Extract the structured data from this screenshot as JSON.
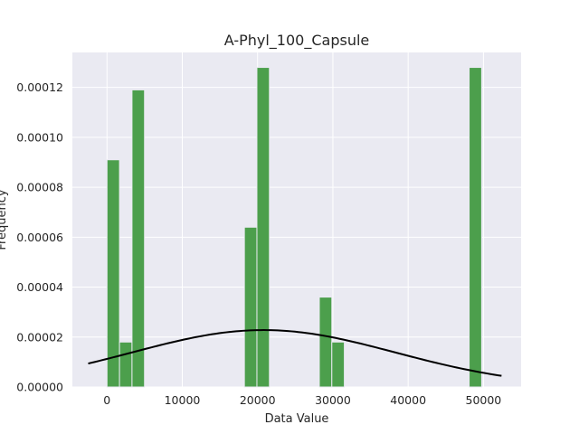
{
  "chart_data": {
    "type": "bar",
    "title": "A-Phyl_100_Capsule",
    "xlabel": "Data Value",
    "ylabel": "Frequency",
    "xlim": [
      -4600,
      55000
    ],
    "ylim": [
      0,
      0.000134
    ],
    "xticks": [
      {
        "value": 0,
        "label": "0"
      },
      {
        "value": 10000,
        "label": "10000"
      },
      {
        "value": 20000,
        "label": "20000"
      },
      {
        "value": 30000,
        "label": "30000"
      },
      {
        "value": 40000,
        "label": "40000"
      },
      {
        "value": 50000,
        "label": "50000"
      }
    ],
    "yticks": [
      {
        "value": 0,
        "label": "0.00000"
      },
      {
        "value": 2e-05,
        "label": "0.00002"
      },
      {
        "value": 4e-05,
        "label": "0.00004"
      },
      {
        "value": 6e-05,
        "label": "0.00006"
      },
      {
        "value": 8e-05,
        "label": "0.00008"
      },
      {
        "value": 0.0001,
        "label": "0.00010"
      },
      {
        "value": 0.00012,
        "label": "0.00012"
      }
    ],
    "grid": true,
    "bars": [
      {
        "x0": 0,
        "x1": 1660,
        "value": 9.1e-05
      },
      {
        "x0": 1660,
        "x1": 3320,
        "value": 1.8e-05
      },
      {
        "x0": 3320,
        "x1": 4980,
        "value": 0.000119
      },
      {
        "x0": 18250,
        "x1": 19910,
        "value": 6.4e-05
      },
      {
        "x0": 19910,
        "x1": 21570,
        "value": 0.000128
      },
      {
        "x0": 28200,
        "x1": 29860,
        "value": 3.6e-05
      },
      {
        "x0": 29860,
        "x1": 31520,
        "value": 1.8e-05
      },
      {
        "x0": 48100,
        "x1": 49760,
        "value": 0.000128
      }
    ],
    "curve": {
      "type": "normal-pdf",
      "mean": 20800,
      "std": 17500,
      "x_range": [
        -2500,
        52400
      ]
    },
    "colors": {
      "bar": "#4c9f4c",
      "bar_edge": "#eaeaf2",
      "curve": "#000000",
      "plot_bg": "#eaeaf2",
      "grid": "#ffffff",
      "text": "#262626"
    }
  }
}
